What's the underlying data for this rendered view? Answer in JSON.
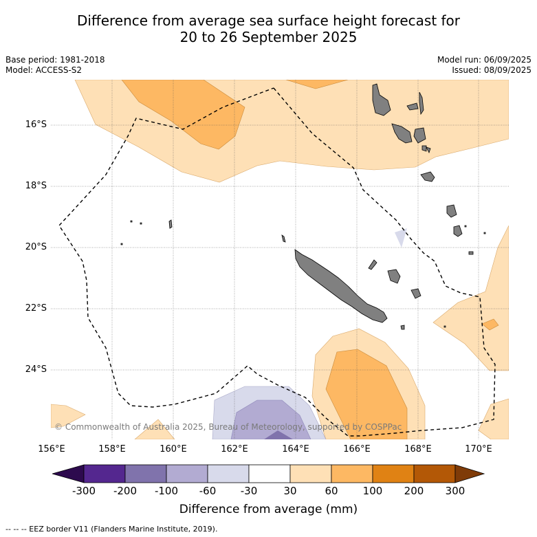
{
  "title_line1": "Difference from average sea surface height forecast for",
  "title_line2": "20 to 26 September 2025",
  "base_period": "Base period: 1981-2018",
  "model": "Model: ACCESS-S2",
  "model_run": "Model run: 06/09/2025",
  "issued": "Issued: 08/09/2025",
  "y_ticks": [
    "16°S",
    "18°S",
    "20°S",
    "22°S",
    "24°S"
  ],
  "x_ticks": [
    "156°E",
    "158°E",
    "160°E",
    "162°E",
    "164°E",
    "166°E",
    "168°E",
    "170°E"
  ],
  "copyright": "© Commonwealth of Australia 2025, Bureau of Meteorology, supported by COSPPac",
  "colorbar": {
    "ticks": [
      "-300",
      "-200",
      "-100",
      "-60",
      "-30",
      "30",
      "60",
      "100",
      "200",
      "300"
    ],
    "label": "Difference from average (mm)",
    "colors": {
      "below_-300": "#2d0a4e",
      "-300_-200": "#54278f",
      "-200_-100": "#8073ac",
      "-100_-60": "#b2abd2",
      "-60_-30": "#d8daeb",
      "-30_30": "#ffffff",
      "30_60": "#fee0b6",
      "60_100": "#fdb863",
      "100_200": "#e08214",
      "200_300": "#b35806",
      "above_300": "#7f3b08"
    }
  },
  "footnote": "--  --  -- EEZ border V11 (Flanders Marine Institute, 2019)."
}
